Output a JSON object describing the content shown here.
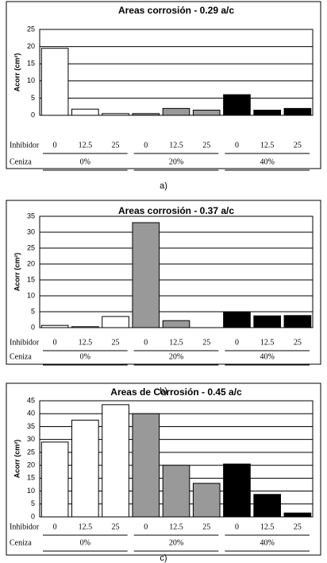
{
  "chart_data": [
    {
      "type": "bar",
      "title": "Areas corrosión - 0.29 a/c",
      "y_label": "Acorr   (cm²)",
      "row_labels": [
        "Inhibidor",
        "Ceniza"
      ],
      "categories": [
        "0",
        "12.5",
        "25"
      ],
      "series": [
        {
          "name": "0%",
          "color": "#ffffff",
          "values": [
            19.5,
            1.8,
            0.5
          ]
        },
        {
          "name": "20%",
          "color": "#999999",
          "values": [
            0.5,
            2.0,
            1.5
          ]
        },
        {
          "name": "40%",
          "color": "#000000",
          "values": [
            6.0,
            1.5,
            2.0
          ]
        }
      ],
      "ylim": [
        0,
        25
      ],
      "yticks": [
        0,
        5,
        10,
        15,
        20,
        25
      ],
      "grid": true,
      "caption": "a)"
    },
    {
      "type": "bar",
      "title": "Areas corrosión - 0.37 a/c",
      "y_label": "Acorr   (cm²)",
      "row_labels": [
        "Inhibidor",
        "Ceniza"
      ],
      "categories": [
        "0",
        "12.5",
        "25"
      ],
      "series": [
        {
          "name": "0%",
          "color": "#ffffff",
          "values": [
            0.7,
            0.3,
            3.5
          ]
        },
        {
          "name": "20%",
          "color": "#999999",
          "values": [
            33,
            2.2,
            0
          ]
        },
        {
          "name": "40%",
          "color": "#000000",
          "values": [
            5,
            3.7,
            3.8
          ]
        }
      ],
      "ylim": [
        0,
        35
      ],
      "yticks": [
        0,
        5,
        10,
        15,
        20,
        25,
        30,
        35
      ],
      "grid": true,
      "caption": "b)"
    },
    {
      "type": "bar",
      "title": "Areas de Corrosión - 0.45 a/c",
      "y_label": "Acorr   (cm²)",
      "row_labels": [
        "Inhibidor",
        "Ceniza"
      ],
      "categories": [
        "0",
        "12.5",
        "25"
      ],
      "series": [
        {
          "name": "0%",
          "color": "#ffffff",
          "values": [
            29,
            37.5,
            43.5
          ]
        },
        {
          "name": "20%",
          "color": "#999999",
          "values": [
            40,
            20,
            13
          ]
        },
        {
          "name": "40%",
          "color": "#000000",
          "values": [
            20.5,
            8.7,
            1.5
          ]
        }
      ],
      "ylim": [
        0,
        45
      ],
      "yticks": [
        0,
        5,
        10,
        15,
        20,
        25,
        30,
        35,
        40,
        45
      ],
      "grid": true,
      "caption": "c)"
    }
  ]
}
